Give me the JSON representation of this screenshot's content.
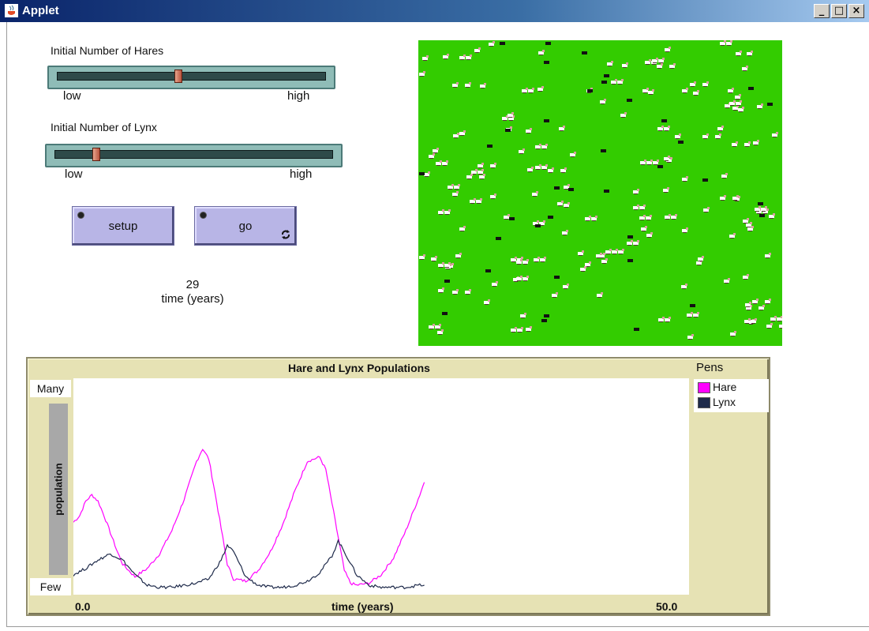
{
  "window": {
    "title": "Applet",
    "min": "_",
    "max": "□",
    "close": "×"
  },
  "sliders": [
    {
      "label": "Initial Number of Hares",
      "low": "low",
      "high": "high",
      "value_fraction": 0.45
    },
    {
      "label": "Initial Number of Lynx",
      "low": "low",
      "high": "high",
      "value_fraction": 0.14
    }
  ],
  "buttons": {
    "setup": "setup",
    "go": "go"
  },
  "monitor": {
    "value": "29",
    "label": "time (years)"
  },
  "world": {
    "background": "#33cc00",
    "hare_color": "#ffffff",
    "lynx_color": "#111111"
  },
  "plot": {
    "title": "Hare and Lynx Populations",
    "y_top": "Many",
    "y_bottom": "Few",
    "y_title": "population",
    "x_min": "0.0",
    "x_max": "50.0",
    "x_title": "time (years)",
    "legend_title": "Pens",
    "pens": [
      {
        "name": "Hare",
        "color": "#ff00ff"
      },
      {
        "name": "Lynx",
        "color": "#1e2a4a"
      }
    ]
  },
  "chart_data": {
    "type": "line",
    "xlabel": "time (years)",
    "ylabel": "population",
    "xlim": [
      0,
      50
    ],
    "ylim": [
      0,
      100
    ],
    "series": [
      {
        "name": "Hare",
        "color": "#ff00ff",
        "x": [
          0,
          0.5,
          1,
          1.5,
          2,
          2.5,
          3,
          3.5,
          4,
          5,
          6,
          7,
          8,
          9,
          10,
          10.5,
          11,
          11.5,
          12,
          12.5,
          13,
          14,
          15,
          16,
          17,
          18,
          19,
          20,
          20.5,
          21,
          21.5,
          22,
          22.5,
          23,
          24,
          25,
          26,
          27,
          28,
          28.5
        ],
        "y": [
          33,
          36,
          43,
          46,
          43,
          36,
          28,
          20,
          13,
          7,
          11,
          18,
          29,
          44,
          62,
          68,
          63,
          47,
          30,
          13,
          6,
          5,
          10,
          19,
          32,
          48,
          62,
          64,
          58,
          42,
          26,
          10,
          4,
          3,
          4,
          8,
          16,
          29,
          44,
          52
        ]
      },
      {
        "name": "Lynx",
        "color": "#1e2a4a",
        "x": [
          0,
          1,
          2,
          3,
          4,
          5,
          6,
          7,
          8,
          9,
          10,
          11,
          12,
          12.5,
          13,
          14,
          15,
          16,
          17,
          18,
          19,
          20,
          21,
          21.5,
          22,
          23,
          24,
          25,
          26,
          27,
          28,
          28.5
        ],
        "y": [
          8,
          11,
          15,
          18,
          15,
          8,
          3,
          2,
          2,
          3,
          4,
          6,
          15,
          22,
          19,
          7,
          3,
          2,
          2,
          3,
          5,
          9,
          17,
          24,
          19,
          8,
          3,
          2,
          2,
          2,
          3,
          3
        ]
      }
    ]
  }
}
